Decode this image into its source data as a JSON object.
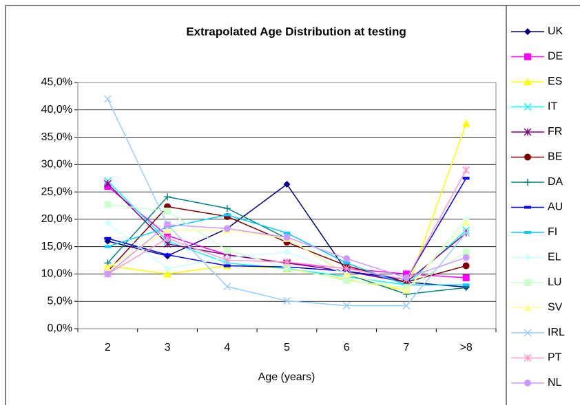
{
  "chart_data": {
    "type": "line",
    "title": "Extrapolated Age Distribution at testing",
    "x_label": "Age (years)",
    "categories": [
      "2",
      "3",
      "4",
      "5",
      "6",
      "7",
      ">8"
    ],
    "ylim": [
      0,
      45
    ],
    "yticks": [
      {
        "value": 0,
        "label": "0,0%"
      },
      {
        "value": 5,
        "label": "5,0%"
      },
      {
        "value": 10,
        "label": "10,0%"
      },
      {
        "value": 15,
        "label": "15,0%"
      },
      {
        "value": 20,
        "label": "20,0%"
      },
      {
        "value": 25,
        "label": "25,0%"
      },
      {
        "value": 30,
        "label": "30,0%"
      },
      {
        "value": 35,
        "label": "35,0%"
      },
      {
        "value": 40,
        "label": "40,0%"
      },
      {
        "value": 45,
        "label": "45,0%"
      }
    ],
    "grid": true,
    "legend": "right",
    "series": [
      {
        "name": "UK",
        "color": "#000080",
        "marker": "diamond",
        "values": [
          16,
          13.3,
          18.3,
          26.4,
          10.5,
          8.5,
          7.6
        ]
      },
      {
        "name": "DE",
        "color": "#ff00ff",
        "marker": "square",
        "values": [
          26,
          17,
          13.5,
          12,
          11,
          10,
          9.3
        ]
      },
      {
        "name": "ES",
        "color": "#ffff00",
        "marker": "triangle",
        "values": [
          11.5,
          10,
          11.5,
          11,
          9,
          7,
          37.5
        ]
      },
      {
        "name": "IT",
        "color": "#00ffff",
        "marker": "x",
        "values": [
          27,
          16,
          12,
          11,
          9.5,
          8,
          18
        ]
      },
      {
        "name": "FR",
        "color": "#800080",
        "marker": "star",
        "values": [
          26.5,
          15.5,
          13.5,
          12,
          10.5,
          8.5,
          17.5
        ]
      },
      {
        "name": "BE",
        "color": "#800000",
        "marker": "circle",
        "values": [
          10.5,
          22.3,
          20.5,
          15.8,
          11.5,
          8.5,
          11.5
        ]
      },
      {
        "name": "DA",
        "color": "#008080",
        "marker": "plus",
        "values": [
          12,
          24.1,
          22,
          16.5,
          10,
          6.3,
          7.5
        ]
      },
      {
        "name": "AU",
        "color": "#0000ff",
        "marker": "dash",
        "values": [
          16.5,
          13.5,
          11.5,
          11.3,
          10.5,
          9,
          27.5
        ]
      },
      {
        "name": "FI",
        "color": "#00ccff",
        "marker": "dash",
        "values": [
          15,
          18.5,
          20.8,
          17.5,
          12,
          8,
          8
        ]
      },
      {
        "name": "EL",
        "color": "#ccffff",
        "marker": "diamond",
        "values": [
          19.3,
          11,
          13,
          14,
          10,
          7,
          20
        ]
      },
      {
        "name": "LU",
        "color": "#ccffcc",
        "marker": "square",
        "values": [
          22.7,
          21.5,
          14.3,
          11.2,
          8.8,
          7.5,
          14
        ]
      },
      {
        "name": "SV",
        "color": "#ffff99",
        "marker": "triangle",
        "values": [
          11,
          18,
          18,
          16.5,
          10,
          7,
          19.5
        ]
      },
      {
        "name": "IRL",
        "color": "#99ccff",
        "marker": "x",
        "values": [
          42,
          19,
          7.7,
          5.1,
          4.2,
          4.2,
          17.5
        ]
      },
      {
        "name": "PT",
        "color": "#ff99cc",
        "marker": "star",
        "values": [
          10,
          16.5,
          12.5,
          12.2,
          11,
          9,
          29
        ]
      },
      {
        "name": "NL",
        "color": "#cc99ff",
        "marker": "circle",
        "values": [
          10,
          19,
          18.3,
          16.7,
          12.8,
          9.3,
          13
        ]
      }
    ]
  }
}
